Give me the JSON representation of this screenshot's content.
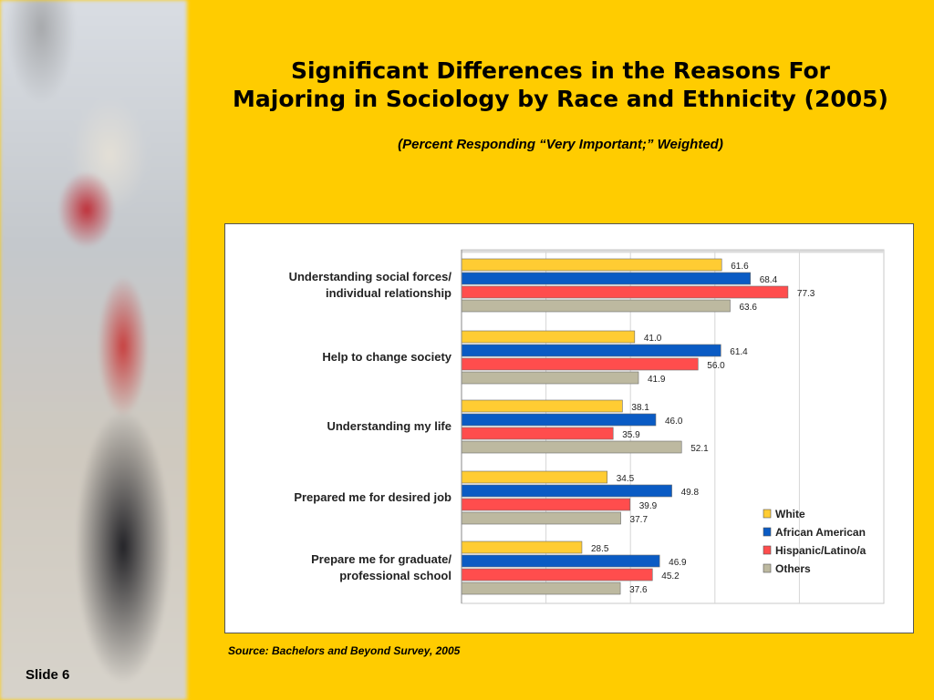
{
  "slide": {
    "title_line1": "Significant Differences in the Reasons For",
    "title_line2": "Majoring in Sociology by Race and Ethnicity (2005)",
    "subtitle": "(Percent Responding “Very Important;” Weighted)",
    "source": "Source: Bachelors and Beyond Survey, 2005",
    "slide_number_label": "Slide 6"
  },
  "chart_data": {
    "type": "bar",
    "orientation": "horizontal",
    "categories": [
      [
        "Understanding social forces/",
        "individual relationship"
      ],
      [
        "Help to change society"
      ],
      [
        "Understanding my life"
      ],
      [
        "Prepared me for desired job"
      ],
      [
        "Prepare me for graduate/",
        "professional school"
      ]
    ],
    "series": [
      {
        "name": "White",
        "color": "#FFCC33",
        "values": [
          61.6,
          41.0,
          38.1,
          34.5,
          28.5
        ]
      },
      {
        "name": "African American",
        "color": "#0A5BC4",
        "values": [
          68.4,
          61.4,
          46.0,
          49.8,
          46.9
        ]
      },
      {
        "name": "Hispanic/Latino/a",
        "color": "#FF4D4D",
        "values": [
          77.3,
          56.0,
          35.9,
          39.9,
          45.2
        ]
      },
      {
        "name": "Others",
        "color": "#BDB9A0",
        "values": [
          63.6,
          41.9,
          52.1,
          37.7,
          37.6
        ]
      }
    ],
    "value_labels": [
      [
        "61.6",
        "41.0",
        "38.1",
        "34.5",
        "28.5"
      ],
      [
        "68.4",
        "61.4",
        "46.0",
        "49.8",
        "46.9"
      ],
      [
        "77.3",
        "56.0",
        "35.9",
        "39.9",
        "45.2"
      ],
      [
        "63.6",
        "41.9",
        "52.1",
        "37.7",
        "37.6"
      ]
    ],
    "xlim": [
      0,
      100
    ],
    "grid": true,
    "legend_position": "bottom-right"
  }
}
